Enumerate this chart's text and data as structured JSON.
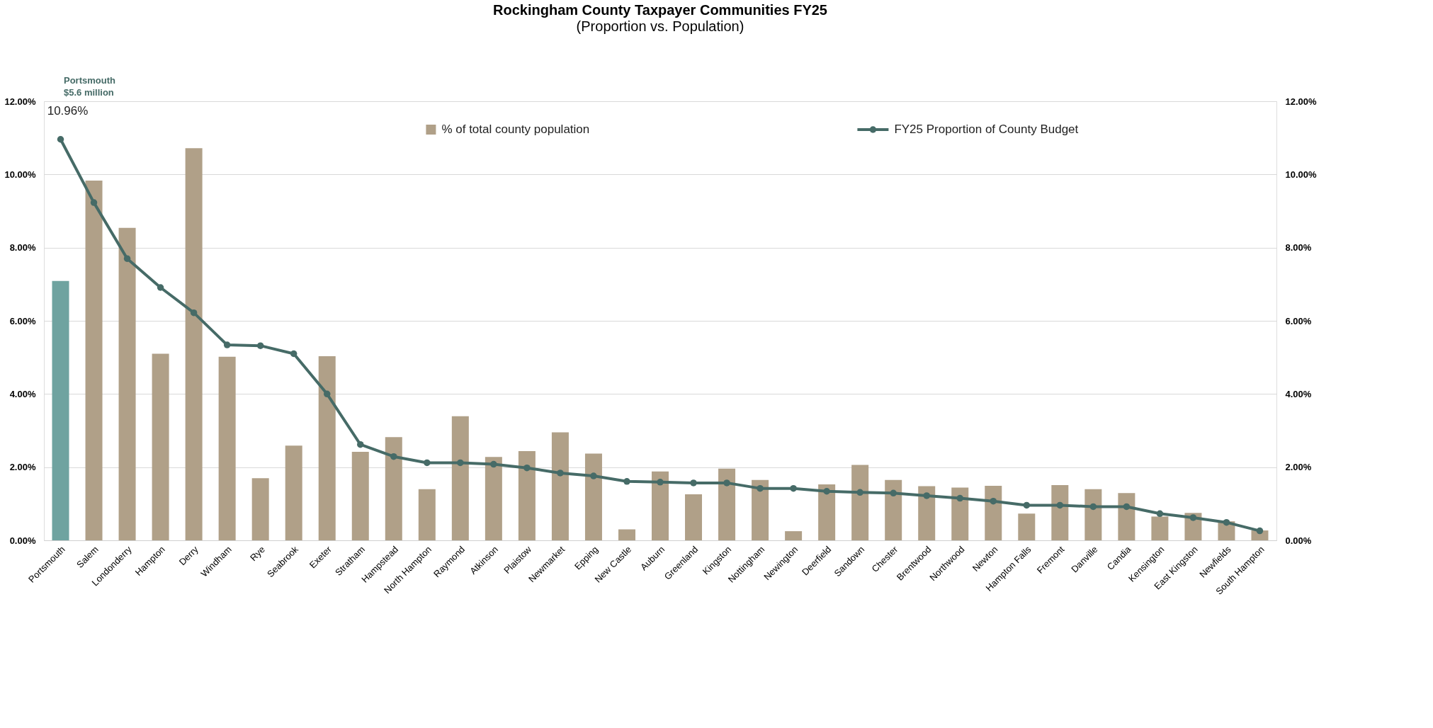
{
  "chart_data": {
    "type": "bar",
    "title": "Rockingham County Taxpayer Communities FY25",
    "subtitle": "(Proportion vs. Population)",
    "categories": [
      "Portsmouth",
      "Salem",
      "Londonderry",
      "Hampton",
      "Derry",
      "Windham",
      "Rye",
      "Seabrook",
      "Exeter",
      "Stratham",
      "Hampstead",
      "North Hampton",
      "Raymond",
      "Atkinson",
      "Plaistow",
      "Newmarket",
      "Epping",
      "New Castle",
      "Auburn",
      "Greenland",
      "Kingston",
      "Nottingham",
      "Newington",
      "Deerfield",
      "Sandown",
      "Chester",
      "Brentwood",
      "Northwood",
      "Newton",
      "Hampton Falls",
      "Fremont",
      "Danville",
      "Candia",
      "Kensington",
      "East Kingston",
      "Newfields",
      "South Hampton"
    ],
    "series": [
      {
        "name": "% of total county population",
        "color": "#b0a088",
        "colors": [
          "#6fa3a0",
          "#b0a088",
          "#b0a088",
          "#b0a088",
          "#b0a088",
          "#b0a088",
          "#b0a088",
          "#b0a088",
          "#b0a088",
          "#b0a088",
          "#b0a088",
          "#b0a088",
          "#b0a088",
          "#b0a088",
          "#b0a088",
          "#b0a088",
          "#b0a088",
          "#b0a088",
          "#b0a088",
          "#b0a088",
          "#b0a088",
          "#b0a088",
          "#b0a088",
          "#b0a088",
          "#b0a088",
          "#b0a088",
          "#b0a088",
          "#b0a088",
          "#b0a088",
          "#b0a088",
          "#b0a088",
          "#b0a088",
          "#b0a088",
          "#b0a088",
          "#b0a088",
          "#b0a088",
          "#b0a088"
        ],
        "values": [
          7.09,
          9.83,
          8.54,
          5.1,
          10.72,
          5.02,
          1.7,
          2.59,
          5.03,
          2.42,
          2.82,
          1.4,
          3.39,
          2.28,
          2.44,
          2.95,
          2.37,
          0.3,
          1.88,
          1.26,
          1.96,
          1.65,
          0.25,
          1.53,
          2.06,
          1.65,
          1.48,
          1.44,
          1.49,
          0.73,
          1.51,
          1.4,
          1.29,
          0.65,
          0.75,
          0.52,
          0.27
        ]
      },
      {
        "name": "FY25 Proportion of County Budget",
        "type": "line",
        "axis": "y2",
        "color": "#466b67",
        "marker": "circle",
        "values": [
          10.96,
          9.23,
          7.7,
          6.91,
          6.22,
          5.34,
          5.32,
          5.1,
          4.0,
          2.62,
          2.29,
          2.12,
          2.12,
          2.08,
          1.98,
          1.84,
          1.76,
          1.61,
          1.59,
          1.57,
          1.57,
          1.42,
          1.42,
          1.34,
          1.31,
          1.29,
          1.22,
          1.15,
          1.07,
          0.96,
          0.96,
          0.92,
          0.92,
          0.73,
          0.62,
          0.49,
          0.26
        ]
      }
    ],
    "ylim": [
      0,
      12
    ],
    "yticks": [
      {
        "value": 0,
        "label": "0.00%"
      },
      {
        "value": 2,
        "label": "2.00%"
      },
      {
        "value": 4,
        "label": "4.00%"
      },
      {
        "value": 6,
        "label": "6.00%"
      },
      {
        "value": 8,
        "label": "8.00%"
      },
      {
        "value": 10,
        "label": "10.00%"
      },
      {
        "value": 12,
        "label": "12.00%"
      }
    ],
    "y2lim": [
      0,
      12
    ],
    "y2ticks": [
      {
        "value": 0,
        "label": "0.00%"
      },
      {
        "value": 2,
        "label": "2.00%"
      },
      {
        "value": 4,
        "label": "4.00%"
      },
      {
        "value": 6,
        "label": "6.00%"
      },
      {
        "value": 8,
        "label": "8.00%"
      },
      {
        "value": 10,
        "label": "10.00%"
      },
      {
        "value": 12,
        "label": "12.00%"
      }
    ],
    "annotations": [
      "Portsmouth\n$5.6 million",
      {
        "text": "10.96%",
        "x": "Portsmouth",
        "y": 10.96
      }
    ],
    "grid": "y",
    "legend": "top"
  }
}
